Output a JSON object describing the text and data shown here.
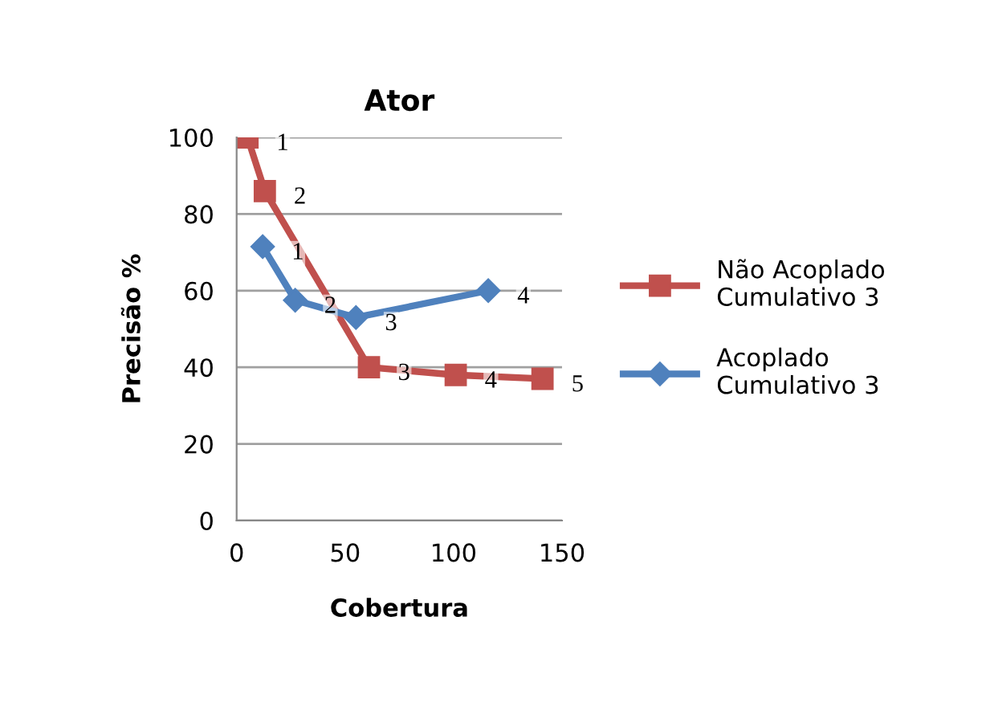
{
  "chart_data": {
    "type": "line",
    "title": "Ator",
    "xlabel": "Cobertura",
    "ylabel": "Precisão %",
    "xlim": [
      0,
      150
    ],
    "xticks": [
      0,
      50,
      100,
      150
    ],
    "ylim": [
      0,
      100
    ],
    "yticks": [
      0,
      20,
      40,
      60,
      80,
      100
    ],
    "grid": "y",
    "legend": "right",
    "series": [
      {
        "name": "Não Acoplado Cumulativo 3",
        "color": "#c0504d",
        "marker": "square",
        "x": [
          5,
          13,
          61,
          101,
          141
        ],
        "values": [
          100,
          86,
          40,
          38,
          37
        ]
      },
      {
        "name": "Acoplado Cumulativo 3",
        "color": "#4f81bd",
        "marker": "diamond",
        "x": [
          12,
          27,
          55,
          116
        ],
        "values": [
          71.5,
          57.5,
          53,
          60
        ]
      }
    ],
    "annotations": [
      {
        "text": "1",
        "x": 5,
        "y": 100
      },
      {
        "text": "2",
        "x": 13,
        "y": 86
      },
      {
        "text": "3",
        "x": 61,
        "y": 40
      },
      {
        "text": "4",
        "x": 101,
        "y": 38
      },
      {
        "text": "5",
        "x": 141,
        "y": 37
      },
      {
        "text": "1",
        "x": 12,
        "y": 71.5
      },
      {
        "text": "2",
        "x": 27,
        "y": 57.5
      },
      {
        "text": "3",
        "x": 55,
        "y": 53
      },
      {
        "text": "4",
        "x": 116,
        "y": 60
      }
    ]
  }
}
